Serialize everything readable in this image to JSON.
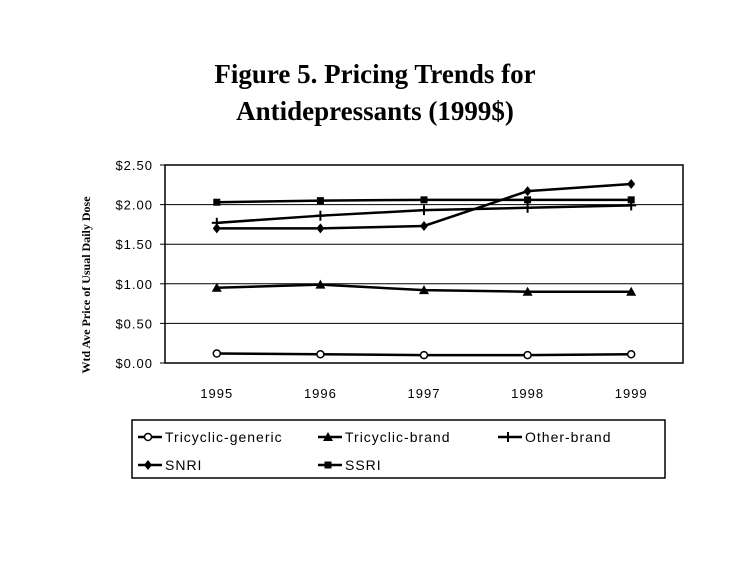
{
  "chart_data": {
    "type": "line",
    "title_lines": [
      "Figure 5. Pricing Trends for",
      "Antidepressants (1999$)"
    ],
    "xlabel": "",
    "ylabel": "Wtd Ave Price of Usual Daily Dose",
    "x": [
      "1995",
      "1996",
      "1997",
      "1998",
      "1999"
    ],
    "ylim": [
      0,
      2.5
    ],
    "yticks": [
      "$0.00",
      "$0.50",
      "$1.00",
      "$1.50",
      "$2.00",
      "$2.50"
    ],
    "grid": true,
    "legend_position": "bottom",
    "series": [
      {
        "name": "Tricyclic-generic",
        "marker": "open-circle",
        "values": [
          0.12,
          0.11,
          0.1,
          0.1,
          0.11
        ]
      },
      {
        "name": "Tricyclic-brand",
        "marker": "triangle",
        "values": [
          0.95,
          0.99,
          0.92,
          0.9,
          0.9
        ]
      },
      {
        "name": "Other-brand",
        "marker": "cross",
        "values": [
          1.77,
          1.86,
          1.93,
          1.96,
          1.99
        ]
      },
      {
        "name": "SNRI",
        "marker": "diamond",
        "values": [
          1.7,
          1.7,
          1.73,
          2.17,
          2.26
        ]
      },
      {
        "name": "SSRI",
        "marker": "square",
        "values": [
          2.03,
          2.05,
          2.06,
          2.06,
          2.06
        ]
      }
    ]
  }
}
